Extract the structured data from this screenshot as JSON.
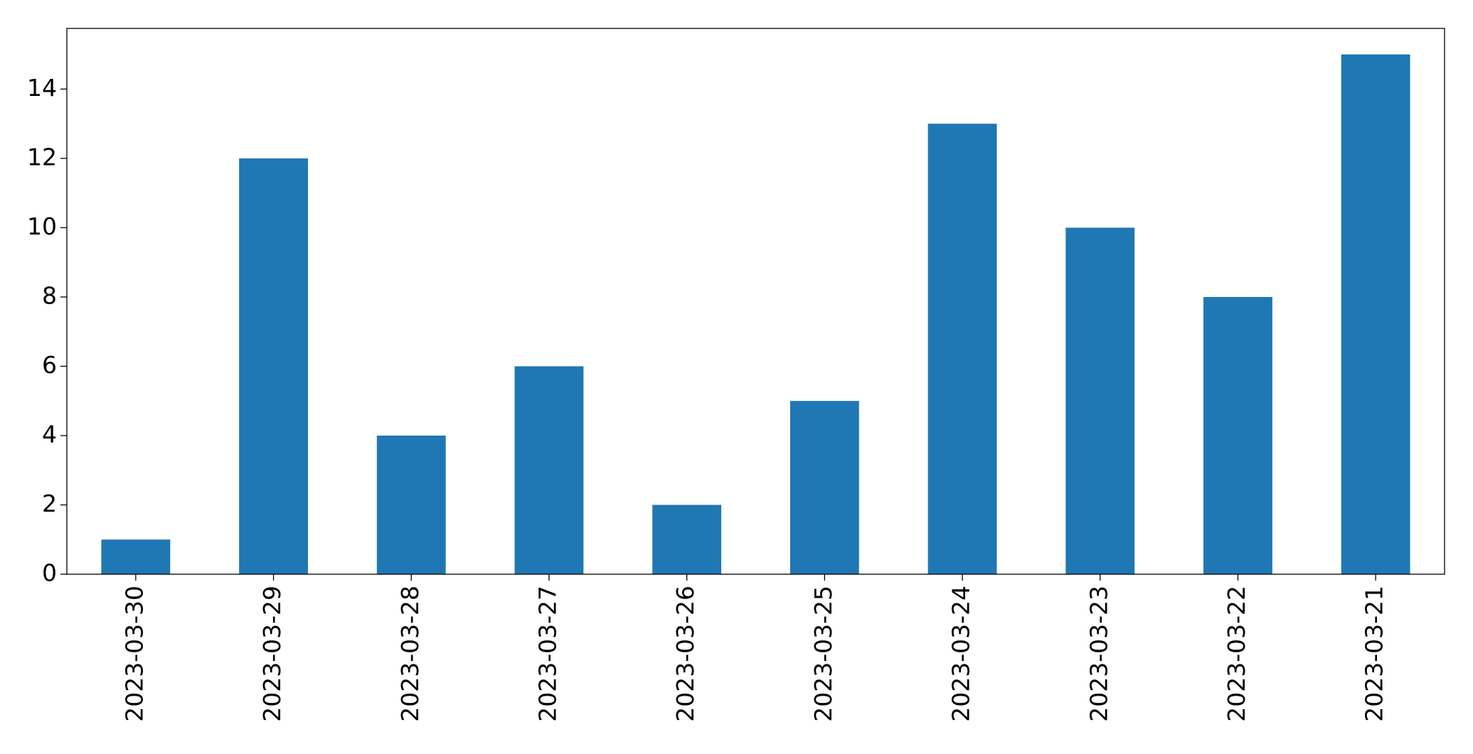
{
  "chart_data": {
    "type": "bar",
    "categories": [
      "2023-03-30",
      "2023-03-29",
      "2023-03-28",
      "2023-03-27",
      "2023-03-26",
      "2023-03-25",
      "2023-03-24",
      "2023-03-23",
      "2023-03-22",
      "2023-03-21"
    ],
    "values": [
      1,
      12,
      4,
      6,
      2,
      5,
      13,
      10,
      8,
      15
    ],
    "color": "#1f77b4",
    "ylim": [
      0,
      15.75
    ],
    "yticks": [
      0,
      2,
      4,
      6,
      8,
      10,
      12,
      14
    ],
    "grid": false
  }
}
